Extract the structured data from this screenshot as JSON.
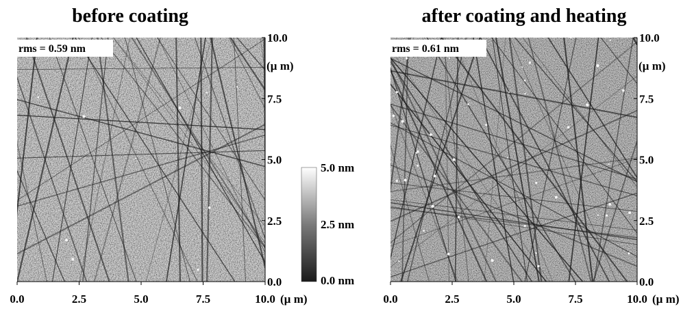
{
  "panels": [
    {
      "title": "before coating",
      "rms": "rms = 0.59 nm",
      "y_ticks": [
        "0.0",
        "2.5",
        "5.0",
        "7.5",
        "10.0"
      ],
      "y_unit": "(µ m)",
      "x_ticks": [
        "0.0",
        "2.5",
        "5.0",
        "7.5",
        "10.0"
      ],
      "x_unit": "(µ m)"
    },
    {
      "title": "after coating and heating",
      "rms": "rms = 0.61 nm",
      "y_ticks": [
        "0.0",
        "2.5",
        "5.0",
        "7.5",
        "10.0"
      ],
      "y_unit": "(µ m)",
      "x_ticks": [
        "0.0",
        "2.5",
        "5.0",
        "7.5",
        "10.0"
      ],
      "x_unit": "(µ m)"
    }
  ],
  "colorbar": {
    "labels": [
      "5.0 nm",
      "2.5 nm",
      "0.0 nm"
    ]
  }
}
